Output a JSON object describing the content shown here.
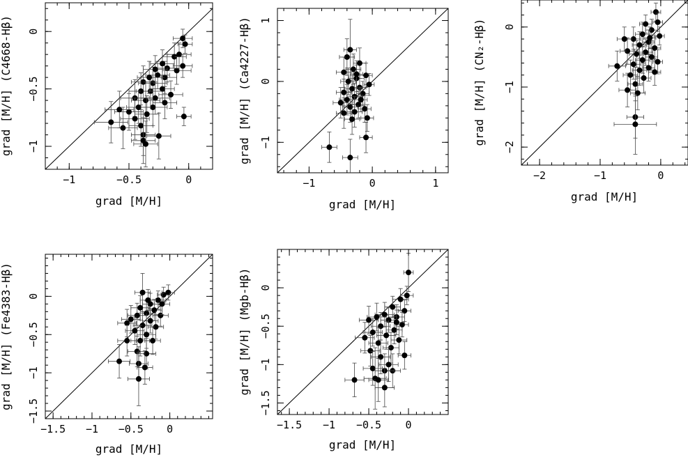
{
  "chart_data": [
    {
      "type": "scatter",
      "xlabel": "grad [M/H]",
      "ylabel": "grad [M/H] (C4668-Hβ)",
      "xlim": [
        -1.2,
        0.2
      ],
      "ylim": [
        -1.2,
        0.25
      ],
      "xticks": [
        -1,
        -0.5,
        0
      ],
      "xtick_labels": [
        "−1",
        "−0.5",
        "0"
      ],
      "yticks": [
        -1,
        -0.5,
        0
      ],
      "ytick_labels": [
        "−1",
        "−0.5",
        "0"
      ],
      "one_to_one_line": true,
      "points": [
        {
          "x": -0.05,
          "y": -0.06,
          "xerr": 0.08,
          "yerr": 0.08
        },
        {
          "x": -0.03,
          "y": -0.11,
          "xerr": 0.06,
          "yerr": 0.08
        },
        {
          "x": -0.08,
          "y": -0.2,
          "xerr": 0.1,
          "yerr": 0.1
        },
        {
          "x": -0.12,
          "y": -0.22,
          "xerr": 0.1,
          "yerr": 0.12
        },
        {
          "x": -0.05,
          "y": -0.3,
          "xerr": 0.08,
          "yerr": 0.1
        },
        {
          "x": -0.1,
          "y": -0.34,
          "xerr": 0.12,
          "yerr": 0.12
        },
        {
          "x": -0.18,
          "y": -0.32,
          "xerr": 0.1,
          "yerr": 0.12
        },
        {
          "x": -0.2,
          "y": -0.4,
          "xerr": 0.1,
          "yerr": 0.14
        },
        {
          "x": -0.26,
          "y": -0.38,
          "xerr": 0.1,
          "yerr": 0.12
        },
        {
          "x": -0.3,
          "y": -0.45,
          "xerr": 0.12,
          "yerr": 0.14
        },
        {
          "x": -0.38,
          "y": -0.44,
          "xerr": 0.1,
          "yerr": 0.14
        },
        {
          "x": -0.32,
          "y": -0.52,
          "xerr": 0.12,
          "yerr": 0.14
        },
        {
          "x": -0.22,
          "y": -0.5,
          "xerr": 0.1,
          "yerr": 0.12
        },
        {
          "x": -0.15,
          "y": -0.55,
          "xerr": 0.1,
          "yerr": 0.12
        },
        {
          "x": -0.4,
          "y": -0.52,
          "xerr": 0.1,
          "yerr": 0.16
        },
        {
          "x": -0.28,
          "y": -0.58,
          "xerr": 0.12,
          "yerr": 0.14
        },
        {
          "x": -0.36,
          "y": -0.6,
          "xerr": 0.12,
          "yerr": 0.16
        },
        {
          "x": -0.45,
          "y": -0.58,
          "xerr": 0.12,
          "yerr": 0.16
        },
        {
          "x": -0.2,
          "y": -0.62,
          "xerr": 0.1,
          "yerr": 0.14
        },
        {
          "x": -0.3,
          "y": -0.66,
          "xerr": 0.12,
          "yerr": 0.16
        },
        {
          "x": -0.42,
          "y": -0.66,
          "xerr": 0.1,
          "yerr": 0.14
        },
        {
          "x": -0.5,
          "y": -0.7,
          "xerr": 0.12,
          "yerr": 0.16
        },
        {
          "x": -0.58,
          "y": -0.68,
          "xerr": 0.12,
          "yerr": 0.16
        },
        {
          "x": -0.35,
          "y": -0.72,
          "xerr": 0.1,
          "yerr": 0.16
        },
        {
          "x": -0.45,
          "y": -0.76,
          "xerr": 0.12,
          "yerr": 0.18
        },
        {
          "x": -0.4,
          "y": -0.82,
          "xerr": 0.1,
          "yerr": 0.18
        },
        {
          "x": -0.55,
          "y": -0.84,
          "xerr": 0.12,
          "yerr": 0.18
        },
        {
          "x": -0.65,
          "y": -0.79,
          "xerr": 0.14,
          "yerr": 0.18
        },
        {
          "x": -0.38,
          "y": -0.9,
          "xerr": 0.1,
          "yerr": 0.18
        },
        {
          "x": -0.25,
          "y": -0.91,
          "xerr": 0.1,
          "yerr": 0.2
        },
        {
          "x": -0.38,
          "y": -0.95,
          "xerr": 0.1,
          "yerr": 0.2
        },
        {
          "x": -0.36,
          "y": -0.98,
          "xerr": 0.1,
          "yerr": 0.2
        },
        {
          "x": -0.04,
          "y": -0.74,
          "xerr": 0.06,
          "yerr": 0.08
        },
        {
          "x": -0.22,
          "y": -0.28,
          "xerr": 0.1,
          "yerr": 0.12
        },
        {
          "x": -0.28,
          "y": -0.33,
          "xerr": 0.1,
          "yerr": 0.12
        },
        {
          "x": -0.33,
          "y": -0.4,
          "xerr": 0.1,
          "yerr": 0.14
        }
      ]
    },
    {
      "type": "scatter",
      "xlabel": "grad [M/H]",
      "ylabel": "grad [M/H] (Ca4227-Hβ)",
      "xlim": [
        -1.5,
        1.2
      ],
      "ylim": [
        -1.5,
        1.2
      ],
      "xticks": [
        -1,
        0,
        1
      ],
      "xtick_labels": [
        "−1",
        "0",
        "1"
      ],
      "yticks": [
        -1,
        0,
        1
      ],
      "ytick_labels": [
        "−1",
        "0",
        "1"
      ],
      "one_to_one_line": true,
      "points": [
        {
          "x": -0.35,
          "y": 0.52,
          "xerr": 0.1,
          "yerr": 0.5
        },
        {
          "x": -0.4,
          "y": 0.4,
          "xerr": 0.12,
          "yerr": 0.3
        },
        {
          "x": -0.2,
          "y": 0.3,
          "xerr": 0.1,
          "yerr": 0.25
        },
        {
          "x": -0.3,
          "y": 0.2,
          "xerr": 0.12,
          "yerr": 0.25
        },
        {
          "x": -0.45,
          "y": 0.15,
          "xerr": 0.12,
          "yerr": 0.25
        },
        {
          "x": -0.1,
          "y": 0.1,
          "xerr": 0.1,
          "yerr": 0.2
        },
        {
          "x": -0.25,
          "y": 0.05,
          "xerr": 0.12,
          "yerr": 0.22
        },
        {
          "x": -0.38,
          "y": 0.0,
          "xerr": 0.12,
          "yerr": 0.22
        },
        {
          "x": -0.05,
          "y": -0.05,
          "xerr": 0.08,
          "yerr": 0.18
        },
        {
          "x": -0.2,
          "y": -0.1,
          "xerr": 0.1,
          "yerr": 0.2
        },
        {
          "x": -0.32,
          "y": -0.12,
          "xerr": 0.12,
          "yerr": 0.22
        },
        {
          "x": -0.45,
          "y": -0.18,
          "xerr": 0.12,
          "yerr": 0.22
        },
        {
          "x": -0.15,
          "y": -0.2,
          "xerr": 0.1,
          "yerr": 0.2
        },
        {
          "x": -0.28,
          "y": -0.25,
          "xerr": 0.12,
          "yerr": 0.22
        },
        {
          "x": -0.4,
          "y": -0.3,
          "xerr": 0.12,
          "yerr": 0.25
        },
        {
          "x": -0.5,
          "y": -0.35,
          "xerr": 0.12,
          "yerr": 0.25
        },
        {
          "x": -0.22,
          "y": -0.38,
          "xerr": 0.1,
          "yerr": 0.22
        },
        {
          "x": -0.35,
          "y": -0.42,
          "xerr": 0.12,
          "yerr": 0.25
        },
        {
          "x": -0.12,
          "y": -0.45,
          "xerr": 0.1,
          "yerr": 0.22
        },
        {
          "x": -0.28,
          "y": -0.5,
          "xerr": 0.12,
          "yerr": 0.25
        },
        {
          "x": -0.45,
          "y": -0.52,
          "xerr": 0.12,
          "yerr": 0.25
        },
        {
          "x": -0.08,
          "y": -0.6,
          "xerr": 0.1,
          "yerr": 0.22
        },
        {
          "x": -0.32,
          "y": -0.62,
          "xerr": 0.12,
          "yerr": 0.25
        },
        {
          "x": -0.1,
          "y": -0.92,
          "xerr": 0.1,
          "yerr": 0.25
        },
        {
          "x": -0.68,
          "y": -1.08,
          "xerr": 0.12,
          "yerr": 0.25
        },
        {
          "x": -0.35,
          "y": -1.25,
          "xerr": 0.12,
          "yerr": 0.3
        },
        {
          "x": -0.18,
          "y": -0.3,
          "xerr": 0.1,
          "yerr": 0.2
        },
        {
          "x": -0.25,
          "y": 0.12,
          "xerr": 0.1,
          "yerr": 0.22
        }
      ]
    },
    {
      "type": "scatter",
      "xlabel": "grad [M/H]",
      "ylabel": "grad [M/H] (CN₂-Hβ)",
      "xlim": [
        -2.3,
        0.45
      ],
      "ylim": [
        -2.3,
        0.45
      ],
      "xticks": [
        -2,
        -1,
        0
      ],
      "xtick_labels": [
        "−2",
        "−1",
        "0"
      ],
      "yticks": [
        -2,
        -1,
        0
      ],
      "ytick_labels": [
        "−2",
        "−1",
        "0"
      ],
      "one_to_one_line": true,
      "points": [
        {
          "x": -0.08,
          "y": 0.25,
          "xerr": 0.08,
          "yerr": 0.15
        },
        {
          "x": -0.25,
          "y": 0.05,
          "xerr": 0.1,
          "yerr": 0.15
        },
        {
          "x": -0.05,
          "y": 0.08,
          "xerr": 0.08,
          "yerr": 0.15
        },
        {
          "x": -0.15,
          "y": -0.05,
          "xerr": 0.1,
          "yerr": 0.18
        },
        {
          "x": -0.3,
          "y": -0.12,
          "xerr": 0.12,
          "yerr": 0.2
        },
        {
          "x": -0.02,
          "y": -0.15,
          "xerr": 0.08,
          "yerr": 0.15
        },
        {
          "x": -0.45,
          "y": -0.2,
          "xerr": 0.12,
          "yerr": 0.2
        },
        {
          "x": -0.2,
          "y": -0.25,
          "xerr": 0.1,
          "yerr": 0.2
        },
        {
          "x": -0.35,
          "y": -0.3,
          "xerr": 0.12,
          "yerr": 0.22
        },
        {
          "x": -0.1,
          "y": -0.35,
          "xerr": 0.1,
          "yerr": 0.2
        },
        {
          "x": -0.25,
          "y": -0.42,
          "xerr": 0.12,
          "yerr": 0.22
        },
        {
          "x": -0.4,
          "y": -0.45,
          "xerr": 0.12,
          "yerr": 0.22
        },
        {
          "x": -0.55,
          "y": -0.4,
          "xerr": 0.12,
          "yerr": 0.22
        },
        {
          "x": -0.15,
          "y": -0.5,
          "xerr": 0.1,
          "yerr": 0.22
        },
        {
          "x": -0.3,
          "y": -0.55,
          "xerr": 0.12,
          "yerr": 0.22
        },
        {
          "x": -0.05,
          "y": -0.58,
          "xerr": 0.08,
          "yerr": 0.2
        },
        {
          "x": -0.45,
          "y": -0.62,
          "xerr": 0.12,
          "yerr": 0.25
        },
        {
          "x": -0.2,
          "y": -0.68,
          "xerr": 0.1,
          "yerr": 0.22
        },
        {
          "x": -0.72,
          "y": -0.65,
          "xerr": 0.14,
          "yerr": 0.25
        },
        {
          "x": -0.35,
          "y": -0.72,
          "xerr": 0.12,
          "yerr": 0.25
        },
        {
          "x": -0.1,
          "y": -0.75,
          "xerr": 0.1,
          "yerr": 0.22
        },
        {
          "x": -0.5,
          "y": -0.8,
          "xerr": 0.12,
          "yerr": 0.25
        },
        {
          "x": -0.28,
          "y": -0.85,
          "xerr": 0.12,
          "yerr": 0.25
        },
        {
          "x": -0.42,
          "y": -0.95,
          "xerr": 0.12,
          "yerr": 0.28
        },
        {
          "x": -0.55,
          "y": -1.05,
          "xerr": 0.14,
          "yerr": 0.28
        },
        {
          "x": -0.38,
          "y": -1.1,
          "xerr": 0.12,
          "yerr": 0.28
        },
        {
          "x": -0.42,
          "y": -1.5,
          "xerr": 0.14,
          "yerr": 0.35
        },
        {
          "x": -0.42,
          "y": -1.62,
          "xerr": 0.35,
          "yerr": 0.5
        },
        {
          "x": -0.18,
          "y": -0.18,
          "xerr": 0.1,
          "yerr": 0.18
        },
        {
          "x": -0.6,
          "y": -0.2,
          "xerr": 0.12,
          "yerr": 0.2
        }
      ]
    },
    {
      "type": "scatter",
      "xlabel": "grad [M/H]",
      "ylabel": "grad [M/H] (Fe4383-Hβ)",
      "xlim": [
        -1.6,
        0.55
      ],
      "ylim": [
        -1.6,
        0.55
      ],
      "xticks": [
        -1.5,
        -1,
        -0.5,
        0
      ],
      "xtick_labels": [
        "−1.5",
        "−1",
        "−0.5",
        "0"
      ],
      "yticks": [
        -1.5,
        -1,
        -0.5,
        0
      ],
      "ytick_labels": [
        "−1.5",
        "−1",
        "−0.5",
        "0"
      ],
      "one_to_one_line": true,
      "points": [
        {
          "x": -0.02,
          "y": 0.05,
          "xerr": 0.08,
          "yerr": 0.1
        },
        {
          "x": -0.08,
          "y": 0.02,
          "xerr": 0.08,
          "yerr": 0.1
        },
        {
          "x": -0.35,
          "y": 0.05,
          "xerr": 0.1,
          "yerr": 0.25
        },
        {
          "x": -0.15,
          "y": -0.05,
          "xerr": 0.1,
          "yerr": 0.12
        },
        {
          "x": -0.25,
          "y": -0.1,
          "xerr": 0.1,
          "yerr": 0.14
        },
        {
          "x": -0.38,
          "y": -0.15,
          "xerr": 0.12,
          "yerr": 0.16
        },
        {
          "x": -0.2,
          "y": -0.18,
          "xerr": 0.1,
          "yerr": 0.14
        },
        {
          "x": -0.3,
          "y": -0.22,
          "xerr": 0.12,
          "yerr": 0.16
        },
        {
          "x": -0.42,
          "y": -0.25,
          "xerr": 0.12,
          "yerr": 0.16
        },
        {
          "x": -0.12,
          "y": -0.25,
          "xerr": 0.1,
          "yerr": 0.14
        },
        {
          "x": -0.5,
          "y": -0.3,
          "xerr": 0.12,
          "yerr": 0.18
        },
        {
          "x": -0.25,
          "y": -0.32,
          "xerr": 0.1,
          "yerr": 0.16
        },
        {
          "x": -0.35,
          "y": -0.38,
          "xerr": 0.12,
          "yerr": 0.18
        },
        {
          "x": -0.18,
          "y": -0.4,
          "xerr": 0.1,
          "yerr": 0.16
        },
        {
          "x": -0.55,
          "y": -0.35,
          "xerr": 0.12,
          "yerr": 0.18
        },
        {
          "x": -0.45,
          "y": -0.45,
          "xerr": 0.12,
          "yerr": 0.18
        },
        {
          "x": -0.3,
          "y": -0.5,
          "xerr": 0.12,
          "yerr": 0.18
        },
        {
          "x": -0.55,
          "y": -0.58,
          "xerr": 0.12,
          "yerr": 0.2
        },
        {
          "x": -0.38,
          "y": -0.58,
          "xerr": 0.12,
          "yerr": 0.2
        },
        {
          "x": -0.22,
          "y": -0.58,
          "xerr": 0.1,
          "yerr": 0.18
        },
        {
          "x": -0.42,
          "y": -0.72,
          "xerr": 0.12,
          "yerr": 0.2
        },
        {
          "x": -0.3,
          "y": -0.75,
          "xerr": 0.12,
          "yerr": 0.2
        },
        {
          "x": -0.4,
          "y": -0.88,
          "xerr": 0.12,
          "yerr": 0.22
        },
        {
          "x": -0.32,
          "y": -0.93,
          "xerr": 0.1,
          "yerr": 0.22
        },
        {
          "x": -0.65,
          "y": -0.85,
          "xerr": 0.14,
          "yerr": 0.22
        },
        {
          "x": -0.4,
          "y": -1.08,
          "xerr": 0.14,
          "yerr": 0.35
        },
        {
          "x": -0.1,
          "y": -0.1,
          "xerr": 0.1,
          "yerr": 0.14
        },
        {
          "x": -0.28,
          "y": -0.05,
          "xerr": 0.1,
          "yerr": 0.14
        }
      ]
    },
    {
      "type": "scatter",
      "xlabel": "grad [M/H]",
      "ylabel": "grad [M/H] (Mgb-Hβ)",
      "xlim": [
        -1.65,
        0.5
      ],
      "ylim": [
        -1.65,
        0.5
      ],
      "xticks": [
        -1.5,
        -1,
        -0.5,
        0
      ],
      "xtick_labels": [
        "−1.5",
        "−1",
        "−0.5",
        "0"
      ],
      "yticks": [
        -1.5,
        -1,
        -0.5,
        0
      ],
      "ytick_labels": [
        "−1.5",
        "−1",
        "−0.5",
        "0"
      ],
      "one_to_one_line": true,
      "points": [
        {
          "x": 0.0,
          "y": 0.2,
          "xerr": 0.06,
          "yerr": 0.25
        },
        {
          "x": -0.02,
          "y": -0.1,
          "xerr": 0.08,
          "yerr": 0.12
        },
        {
          "x": -0.1,
          "y": -0.15,
          "xerr": 0.1,
          "yerr": 0.14
        },
        {
          "x": -0.2,
          "y": -0.25,
          "xerr": 0.1,
          "yerr": 0.14
        },
        {
          "x": -0.05,
          "y": -0.3,
          "xerr": 0.08,
          "yerr": 0.14
        },
        {
          "x": -0.3,
          "y": -0.35,
          "xerr": 0.12,
          "yerr": 0.16
        },
        {
          "x": -0.15,
          "y": -0.38,
          "xerr": 0.1,
          "yerr": 0.16
        },
        {
          "x": -0.4,
          "y": -0.38,
          "xerr": 0.12,
          "yerr": 0.18
        },
        {
          "x": -0.25,
          "y": -0.42,
          "xerr": 0.1,
          "yerr": 0.16
        },
        {
          "x": -0.5,
          "y": -0.42,
          "xerr": 0.12,
          "yerr": 0.18
        },
        {
          "x": -0.08,
          "y": -0.48,
          "xerr": 0.08,
          "yerr": 0.16
        },
        {
          "x": -0.35,
          "y": -0.5,
          "xerr": 0.12,
          "yerr": 0.18
        },
        {
          "x": -0.18,
          "y": -0.55,
          "xerr": 0.1,
          "yerr": 0.18
        },
        {
          "x": -0.45,
          "y": -0.58,
          "xerr": 0.12,
          "yerr": 0.18
        },
        {
          "x": -0.28,
          "y": -0.62,
          "xerr": 0.12,
          "yerr": 0.18
        },
        {
          "x": -0.55,
          "y": -0.65,
          "xerr": 0.12,
          "yerr": 0.2
        },
        {
          "x": -0.12,
          "y": -0.68,
          "xerr": 0.1,
          "yerr": 0.18
        },
        {
          "x": -0.38,
          "y": -0.72,
          "xerr": 0.12,
          "yerr": 0.2
        },
        {
          "x": -0.22,
          "y": -0.78,
          "xerr": 0.1,
          "yerr": 0.2
        },
        {
          "x": -0.48,
          "y": -0.82,
          "xerr": 0.12,
          "yerr": 0.2
        },
        {
          "x": -0.05,
          "y": -0.88,
          "xerr": 0.08,
          "yerr": 0.18
        },
        {
          "x": -0.35,
          "y": -0.9,
          "xerr": 0.12,
          "yerr": 0.22
        },
        {
          "x": -0.25,
          "y": -1.0,
          "xerr": 0.12,
          "yerr": 0.22
        },
        {
          "x": -0.45,
          "y": -1.05,
          "xerr": 0.12,
          "yerr": 0.22
        },
        {
          "x": -0.2,
          "y": -1.08,
          "xerr": 0.1,
          "yerr": 0.22
        },
        {
          "x": -0.3,
          "y": -1.08,
          "xerr": 0.12,
          "yerr": 0.22
        },
        {
          "x": -0.68,
          "y": -1.2,
          "xerr": 0.12,
          "yerr": 0.22
        },
        {
          "x": -0.42,
          "y": -1.18,
          "xerr": 0.14,
          "yerr": 0.4
        },
        {
          "x": -0.38,
          "y": -1.2,
          "xerr": 0.12,
          "yerr": 0.28
        },
        {
          "x": -0.3,
          "y": -1.3,
          "xerr": 0.12,
          "yerr": 0.25
        },
        {
          "x": -0.15,
          "y": -0.45,
          "xerr": 0.1,
          "yerr": 0.16
        }
      ]
    }
  ]
}
